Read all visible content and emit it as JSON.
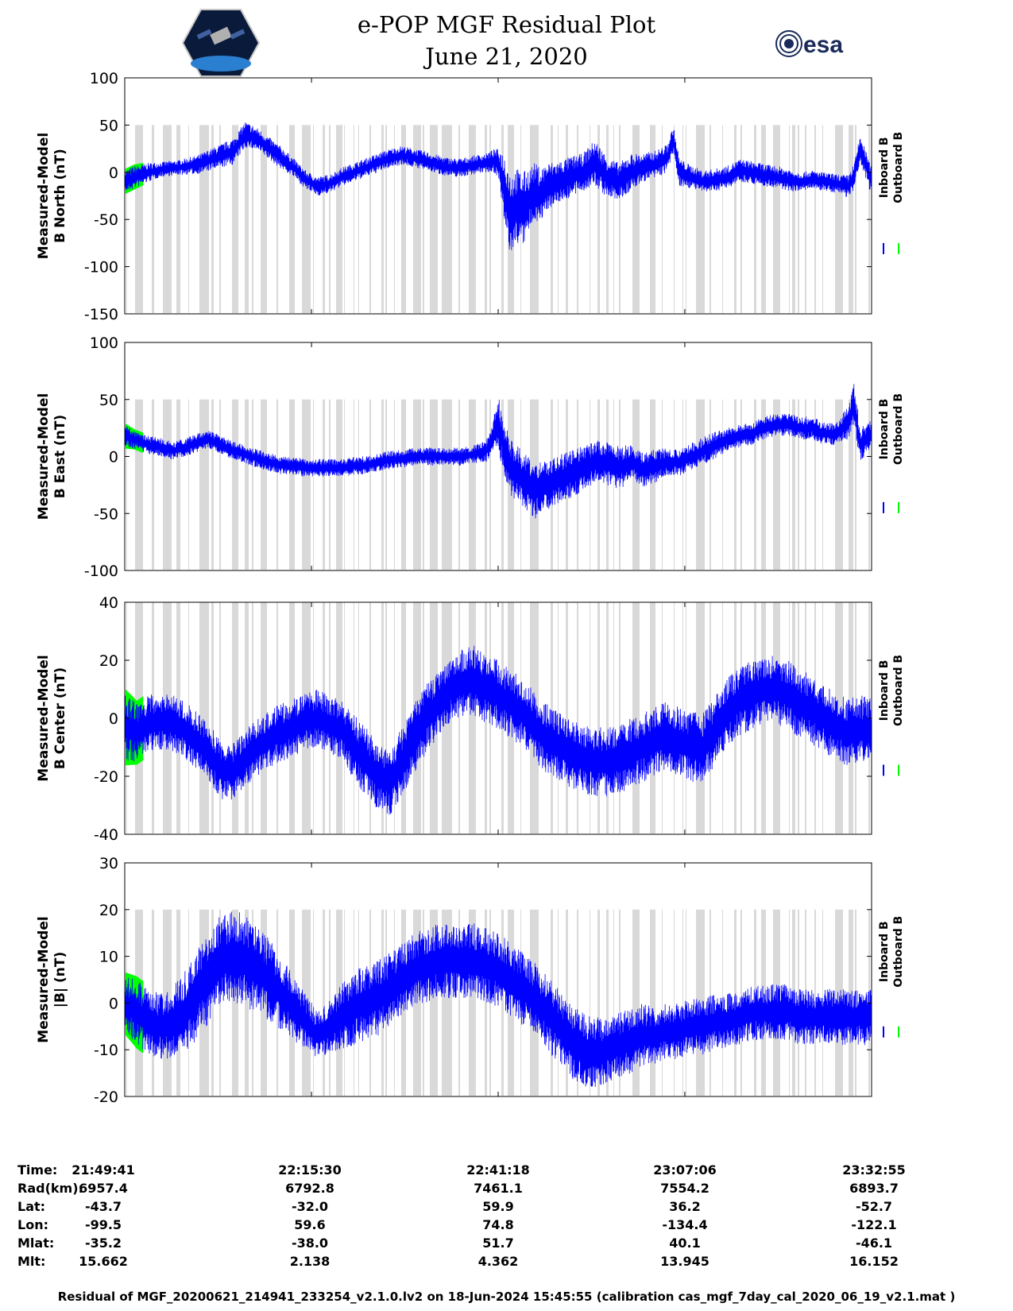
{
  "title": "e-POP MGF Residual Plot",
  "date": "June 21, 2020",
  "logos": {
    "left": "cassiope-mission-logo",
    "right_text": "esa"
  },
  "colors": {
    "inboard": "#0000ff",
    "outboard": "#00ff00",
    "shading": "#d9d9d9",
    "axis": "#000000"
  },
  "chart_data": [
    {
      "type": "line",
      "ylabel_line1": "Measured-Model",
      "ylabel_line2": "B North (nT)",
      "ylim": [
        -150,
        100
      ],
      "yticks": [
        "100",
        "50",
        "0",
        "-50",
        "-100",
        "-150"
      ],
      "ytick_values": [
        100,
        50,
        0,
        -50,
        -100,
        -150
      ],
      "xlim": [
        0,
        6194
      ],
      "xtick_values": [
        0,
        1549,
        3097,
        4645,
        6194
      ],
      "shade_top": 50,
      "series": [
        {
          "name": "Inboard B",
          "color": "#0000ff",
          "x": [
            0,
            80,
            200,
            300,
            450,
            600,
            750,
            900,
            1000,
            1100,
            1200,
            1300,
            1400,
            1500,
            1600,
            1700,
            1800,
            1900,
            2000,
            2100,
            2200,
            2300,
            2400,
            2500,
            2600,
            2700,
            2800,
            2900,
            3000,
            3050,
            3100,
            3150,
            3200,
            3250,
            3300,
            3350,
            3400,
            3450,
            3500,
            3600,
            3700,
            3800,
            3900,
            4000,
            4100,
            4200,
            4300,
            4400,
            4500,
            4550,
            4600,
            4700,
            4800,
            4900,
            5000,
            5100,
            5200,
            5300,
            5400,
            5500,
            5600,
            5700,
            5800,
            5900,
            6000,
            6050,
            6100,
            6194
          ],
          "y": [
            -10,
            -5,
            0,
            3,
            5,
            8,
            15,
            22,
            40,
            35,
            25,
            15,
            5,
            -8,
            -15,
            -12,
            -5,
            0,
            5,
            10,
            15,
            18,
            15,
            12,
            8,
            5,
            5,
            8,
            10,
            12,
            10,
            -20,
            -45,
            -35,
            -40,
            -30,
            -20,
            -25,
            -15,
            -10,
            -5,
            0,
            10,
            -5,
            -10,
            0,
            5,
            8,
            15,
            35,
            0,
            -5,
            -10,
            -8,
            -5,
            2,
            0,
            -3,
            -5,
            -8,
            -10,
            -8,
            -10,
            -12,
            -15,
            -5,
            25,
            -10
          ],
          "band": [
            12,
            12,
            10,
            8,
            8,
            10,
            12,
            14,
            14,
            12,
            12,
            12,
            10,
            10,
            10,
            10,
            10,
            10,
            10,
            10,
            10,
            10,
            10,
            10,
            10,
            10,
            10,
            10,
            10,
            12,
            15,
            40,
            45,
            40,
            40,
            35,
            30,
            30,
            25,
            22,
            22,
            20,
            25,
            22,
            20,
            20,
            15,
            15,
            15,
            15,
            15,
            12,
            12,
            12,
            12,
            12,
            12,
            12,
            12,
            12,
            10,
            10,
            10,
            10,
            12,
            15,
            15,
            15
          ]
        },
        {
          "name": "Outboard B",
          "color": "#00ff00"
        }
      ],
      "legend": [
        "Inboard B",
        "Outboard B"
      ]
    },
    {
      "type": "line",
      "ylabel_line1": "Measured-Model",
      "ylabel_line2": "B East (nT)",
      "ylim": [
        -100,
        100
      ],
      "yticks": [
        "100",
        "50",
        "0",
        "-50",
        "-100"
      ],
      "ytick_values": [
        100,
        50,
        0,
        -50,
        -100
      ],
      "xlim": [
        0,
        6194
      ],
      "xtick_values": [
        0,
        1549,
        3097,
        4645,
        6194
      ],
      "shade_top": 50,
      "series": [
        {
          "name": "Inboard B",
          "color": "#0000ff",
          "x": [
            0,
            80,
            200,
            300,
            400,
            500,
            600,
            700,
            800,
            900,
            1000,
            1100,
            1200,
            1300,
            1400,
            1500,
            1600,
            1700,
            1800,
            1900,
            2000,
            2100,
            2200,
            2300,
            2400,
            2500,
            2600,
            2700,
            2800,
            2900,
            3000,
            3050,
            3100,
            3150,
            3200,
            3300,
            3400,
            3500,
            3600,
            3700,
            3800,
            3900,
            4000,
            4100,
            4200,
            4300,
            4400,
            4500,
            4600,
            4700,
            4800,
            4900,
            5000,
            5100,
            5200,
            5300,
            5400,
            5500,
            5600,
            5700,
            5800,
            5900,
            6000,
            6050,
            6100,
            6194
          ],
          "y": [
            18,
            15,
            10,
            8,
            5,
            8,
            12,
            15,
            10,
            5,
            2,
            -2,
            -5,
            -8,
            -8,
            -10,
            -10,
            -10,
            -10,
            -8,
            -8,
            -5,
            -3,
            -2,
            0,
            0,
            0,
            0,
            0,
            2,
            5,
            15,
            30,
            5,
            -10,
            -20,
            -30,
            -25,
            -20,
            -15,
            -10,
            -5,
            -5,
            -10,
            -5,
            -12,
            -8,
            -5,
            -5,
            0,
            5,
            10,
            15,
            18,
            20,
            25,
            28,
            28,
            25,
            25,
            20,
            20,
            30,
            45,
            10,
            20
          ],
          "band": [
            10,
            8,
            8,
            8,
            8,
            8,
            8,
            8,
            8,
            8,
            8,
            8,
            8,
            8,
            8,
            8,
            8,
            8,
            8,
            8,
            8,
            8,
            8,
            8,
            8,
            8,
            8,
            8,
            8,
            8,
            10,
            15,
            25,
            25,
            25,
            25,
            25,
            22,
            22,
            22,
            20,
            20,
            20,
            20,
            15,
            15,
            15,
            12,
            12,
            12,
            12,
            12,
            10,
            10,
            10,
            10,
            10,
            10,
            10,
            10,
            10,
            10,
            15,
            20,
            15,
            12
          ]
        },
        {
          "name": "Outboard B",
          "color": "#00ff00"
        }
      ],
      "legend": [
        "Inboard B",
        "Outboard B"
      ]
    },
    {
      "type": "line",
      "ylabel_line1": "Measured-Model",
      "ylabel_line2": "B Center (nT)",
      "ylim": [
        -40,
        40
      ],
      "yticks": [
        "40",
        "20",
        "0",
        "-20",
        "-40"
      ],
      "ytick_values": [
        40,
        20,
        0,
        -20,
        -40
      ],
      "xlim": [
        0,
        6194
      ],
      "xtick_values": [
        0,
        1549,
        3097,
        4645,
        6194
      ],
      "shade_top": 40,
      "series": [
        {
          "name": "Inboard B",
          "color": "#0000ff",
          "x": [
            0,
            100,
            200,
            300,
            400,
            500,
            600,
            700,
            800,
            900,
            1000,
            1100,
            1200,
            1300,
            1400,
            1500,
            1600,
            1700,
            1800,
            1900,
            2000,
            2100,
            2200,
            2300,
            2400,
            2500,
            2600,
            2700,
            2800,
            2900,
            3000,
            3100,
            3200,
            3300,
            3400,
            3500,
            3600,
            3700,
            3800,
            3900,
            4000,
            4100,
            4200,
            4300,
            4400,
            4500,
            4600,
            4700,
            4800,
            4900,
            5000,
            5100,
            5200,
            5300,
            5400,
            5500,
            5600,
            5700,
            5800,
            5900,
            6000,
            6100,
            6194
          ],
          "y": [
            -3,
            -5,
            -2,
            -1,
            -2,
            -4,
            -8,
            -12,
            -18,
            -18,
            -14,
            -10,
            -7,
            -5,
            -3,
            -1,
            0,
            -2,
            -4,
            -10,
            -15,
            -20,
            -22,
            -15,
            -7,
            0,
            5,
            10,
            12,
            13,
            10,
            8,
            5,
            2,
            -3,
            -7,
            -10,
            -12,
            -14,
            -15,
            -15,
            -14,
            -12,
            -10,
            -8,
            -6,
            -8,
            -10,
            -10,
            -4,
            2,
            6,
            8,
            10,
            10,
            8,
            5,
            3,
            0,
            -3,
            -5,
            -4,
            -5
          ],
          "band": [
            12,
            10,
            10,
            10,
            10,
            10,
            10,
            10,
            10,
            10,
            10,
            10,
            10,
            10,
            10,
            10,
            10,
            10,
            10,
            12,
            12,
            12,
            12,
            12,
            12,
            12,
            12,
            12,
            12,
            12,
            12,
            12,
            12,
            12,
            12,
            12,
            12,
            12,
            12,
            12,
            12,
            12,
            12,
            12,
            12,
            12,
            12,
            12,
            12,
            12,
            12,
            12,
            12,
            12,
            12,
            12,
            12,
            12,
            12,
            12,
            12,
            12,
            12
          ]
        },
        {
          "name": "Outboard B",
          "color": "#00ff00"
        }
      ],
      "legend": [
        "Inboard B",
        "Outboard B"
      ]
    },
    {
      "type": "line",
      "ylabel_line1": "Measured-Model",
      "ylabel_line2": "|B| (nT)",
      "ylim": [
        -20,
        30
      ],
      "yticks": [
        "30",
        "20",
        "10",
        "0",
        "-10",
        "-20"
      ],
      "ytick_values": [
        30,
        20,
        10,
        0,
        -10,
        -20
      ],
      "xlim": [
        0,
        6194
      ],
      "xtick_values": [
        0,
        1549,
        3097,
        4645,
        6194
      ],
      "shade_top": 20,
      "series": [
        {
          "name": "Inboard B",
          "color": "#0000ff",
          "x": [
            0,
            100,
            200,
            300,
            400,
            500,
            600,
            700,
            800,
            900,
            1000,
            1100,
            1200,
            1300,
            1400,
            1500,
            1600,
            1700,
            1800,
            1900,
            2000,
            2100,
            2200,
            2300,
            2400,
            2500,
            2600,
            2700,
            2800,
            2900,
            3000,
            3100,
            3200,
            3300,
            3400,
            3500,
            3600,
            3700,
            3800,
            3900,
            4000,
            4100,
            4200,
            4300,
            4400,
            4500,
            4600,
            4700,
            4800,
            4900,
            5000,
            5100,
            5200,
            5300,
            5400,
            5500,
            5600,
            5700,
            5800,
            5900,
            6000,
            6100,
            6194
          ],
          "y": [
            0,
            -2,
            -4,
            -5,
            -4,
            -2,
            2,
            6,
            9,
            10,
            9,
            7,
            5,
            2,
            -1,
            -4,
            -7,
            -5,
            -3,
            -1,
            0,
            1,
            3,
            5,
            7,
            8,
            9,
            9,
            9,
            9,
            8,
            7,
            5,
            3,
            1,
            -2,
            -5,
            -8,
            -10,
            -11,
            -10,
            -9,
            -8,
            -7,
            -7,
            -6,
            -6,
            -5,
            -5,
            -4,
            -4,
            -3,
            -2,
            -2,
            -2,
            -2,
            -3,
            -3,
            -3,
            -3,
            -3,
            -3,
            -3
          ],
          "band": [
            6,
            7,
            7,
            7,
            8,
            9,
            10,
            10,
            10,
            10,
            10,
            9,
            9,
            8,
            7,
            6,
            5,
            6,
            7,
            8,
            8,
            8,
            8,
            8,
            8,
            8,
            8,
            8,
            8,
            8,
            8,
            8,
            8,
            8,
            8,
            8,
            8,
            8,
            8,
            8,
            7,
            7,
            7,
            7,
            6,
            6,
            6,
            6,
            6,
            6,
            6,
            6,
            6,
            6,
            6,
            6,
            6,
            6,
            6,
            6,
            6,
            6,
            6
          ]
        },
        {
          "name": "Outboard B",
          "color": "#00ff00"
        }
      ],
      "legend": [
        "Inboard B",
        "Outboard B"
      ]
    }
  ],
  "info": {
    "rows": [
      {
        "label": "Time:",
        "values": [
          "21:49:41",
          "22:15:30",
          "22:41:18",
          "23:07:06",
          "23:32:55"
        ]
      },
      {
        "label": "Rad(km):",
        "values": [
          "6957.4",
          "6792.8",
          "7461.1",
          "7554.2",
          "6893.7"
        ]
      },
      {
        "label": "Lat:",
        "values": [
          "-43.7",
          "-32.0",
          "59.9",
          "36.2",
          "-52.7"
        ]
      },
      {
        "label": "Lon:",
        "values": [
          "-99.5",
          "59.6",
          "74.8",
          "-134.4",
          "-122.1"
        ]
      },
      {
        "label": "Mlat:",
        "values": [
          "-35.2",
          "-38.0",
          "51.7",
          "40.1",
          "-46.1"
        ]
      },
      {
        "label": "Mlt:",
        "values": [
          "15.662",
          "2.138",
          "4.362",
          "13.945",
          "16.152"
        ]
      }
    ]
  },
  "footer": "Residual of MGF_20200621_214941_233254_v2.1.0.lv2 on 18-Jun-2024 15:45:55 (calibration cas_mgf_7day_cal_2020_06_19_v2.1.mat )"
}
